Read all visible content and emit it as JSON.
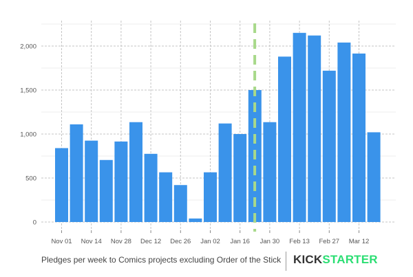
{
  "chart_data": {
    "type": "bar",
    "title": "",
    "xlabel": "",
    "ylabel": "",
    "ylim": [
      0,
      2250
    ],
    "yticks": [
      0,
      500,
      1000,
      1500,
      2000
    ],
    "ytick_labels": [
      "0",
      "500",
      "1,000",
      "1,500",
      "2,000"
    ],
    "xtick_labels": [
      "Nov 01",
      "Nov 14",
      "Nov 28",
      "Dec 12",
      "Dec 26",
      "Jan 02",
      "Jan 16",
      "Jan 30",
      "Feb 13",
      "Feb 27",
      "Mar 12"
    ],
    "values": [
      840,
      1110,
      925,
      705,
      915,
      1135,
      775,
      565,
      420,
      40,
      565,
      1120,
      1000,
      1500,
      1135,
      1880,
      2150,
      2120,
      1720,
      2040,
      1915,
      1020
    ],
    "bar_color": "#3a93ea",
    "marker_line_color": "#a8d98a",
    "grid": true
  },
  "caption": {
    "text": "Pledges per week to Comics projects excluding Order of the Stick",
    "logo_part1": "KICK",
    "logo_part2": "STARTER"
  }
}
